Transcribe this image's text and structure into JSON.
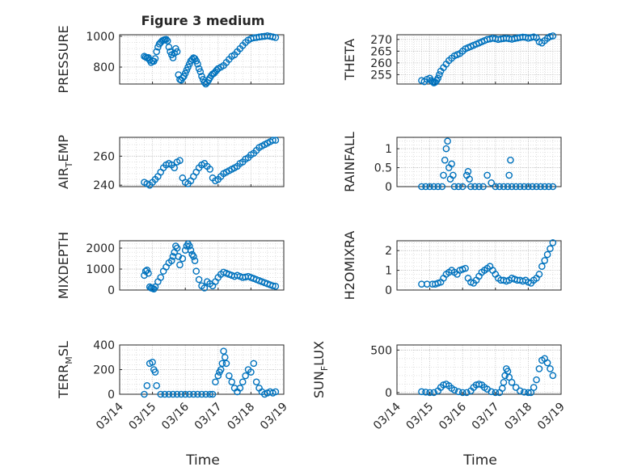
{
  "title": "Figure 3 medium",
  "xlabel": "Time",
  "x_ticks": [
    "03/14",
    "03/15",
    "03/16",
    "03/17",
    "03/18",
    "03/19"
  ],
  "marker_color": "#0072BD",
  "chart_data": [
    {
      "type": "scatter",
      "ylabel": "PRESSURE",
      "ylim": [
        690,
        1010
      ],
      "yticks": [
        800,
        1000
      ],
      "ytick_labels": [
        "800",
        "1000"
      ],
      "grid": true,
      "minor_grid": true,
      "x": [
        "03/14 18:00",
        "03/14 19:00",
        "03/14 20:00",
        "03/14 21:00",
        "03/14 22:00",
        "03/14 23:00",
        "03/15 00:00",
        "03/15 01:00",
        "03/15 02:00",
        "03/15 03:00",
        "03/15 04:00",
        "03/15 05:00",
        "03/15 06:00",
        "03/15 07:00",
        "03/15 08:00",
        "03/15 09:00",
        "03/15 10:00",
        "03/15 11:00",
        "03/15 12:00",
        "03/15 13:00",
        "03/15 14:00",
        "03/15 15:00",
        "03/15 16:00",
        "03/15 17:00",
        "03/15 18:00",
        "03/15 19:00",
        "03/15 20:00",
        "03/15 21:00",
        "03/15 22:00",
        "03/15 23:00",
        "03/16 00:00",
        "03/16 01:00",
        "03/16 02:00",
        "03/16 03:00",
        "03/16 04:00",
        "03/16 05:00",
        "03/16 06:00",
        "03/16 07:00",
        "03/16 08:00",
        "03/16 09:00",
        "03/16 10:00",
        "03/16 11:00",
        "03/16 12:00",
        "03/16 13:00",
        "03/16 14:00",
        "03/16 15:00",
        "03/16 16:00",
        "03/16 17:00",
        "03/16 18:00",
        "03/16 19:00",
        "03/16 20:00",
        "03/16 21:00",
        "03/16 22:00",
        "03/16 23:00",
        "03/17 00:00",
        "03/17 02:00",
        "03/17 04:00",
        "03/17 06:00",
        "03/17 08:00",
        "03/17 10:00",
        "03/17 12:00",
        "03/17 14:00",
        "03/17 16:00",
        "03/17 18:00",
        "03/17 20:00",
        "03/17 22:00",
        "03/18 00:00",
        "03/18 02:00",
        "03/18 04:00",
        "03/18 06:00",
        "03/18 08:00",
        "03/18 10:00",
        "03/18 12:00",
        "03/18 14:00",
        "03/18 16:00",
        "03/18 18:00"
      ],
      "y": [
        870,
        865,
        860,
        862,
        845,
        830,
        840,
        838,
        855,
        900,
        930,
        950,
        960,
        970,
        975,
        978,
        980,
        970,
        930,
        900,
        880,
        860,
        890,
        920,
        900,
        750,
        720,
        715,
        730,
        740,
        760,
        780,
        800,
        820,
        840,
        850,
        860,
        855,
        840,
        820,
        790,
        770,
        740,
        720,
        700,
        690,
        700,
        715,
        730,
        745,
        755,
        760,
        770,
        780,
        790,
        800,
        810,
        830,
        850,
        870,
        880,
        900,
        920,
        940,
        960,
        975,
        985,
        990,
        992,
        995,
        998,
        1000,
        1003,
        1000,
        996,
        992
      ]
    },
    {
      "type": "scatter",
      "ylabel": "THETA",
      "ylim": [
        251,
        272
      ],
      "yticks": [
        255,
        260,
        265,
        270
      ],
      "ytick_labels": [
        "255",
        "260",
        "265",
        "270"
      ],
      "grid": true,
      "minor_grid": true,
      "x": [
        "03/14 18:00",
        "03/14 20:00",
        "03/14 22:00",
        "03/15 00:00",
        "03/15 01:00",
        "03/15 02:00",
        "03/15 03:00",
        "03/15 04:00",
        "03/15 05:00",
        "03/15 06:00",
        "03/15 07:00",
        "03/15 08:00",
        "03/15 10:00",
        "03/15 12:00",
        "03/15 14:00",
        "03/15 16:00",
        "03/15 18:00",
        "03/15 20:00",
        "03/15 22:00",
        "03/16 00:00",
        "03/16 02:00",
        "03/16 04:00",
        "03/16 06:00",
        "03/16 08:00",
        "03/16 10:00",
        "03/16 12:00",
        "03/16 14:00",
        "03/16 16:00",
        "03/16 18:00",
        "03/16 20:00",
        "03/16 22:00",
        "03/17 00:00",
        "03/17 02:00",
        "03/17 04:00",
        "03/17 06:00",
        "03/17 08:00",
        "03/17 10:00",
        "03/17 12:00",
        "03/17 14:00",
        "03/17 16:00",
        "03/17 18:00",
        "03/17 20:00",
        "03/17 22:00",
        "03/18 00:00",
        "03/18 02:00",
        "03/18 04:00",
        "03/18 06:00",
        "03/18 08:00",
        "03/18 10:00",
        "03/18 12:00",
        "03/18 14:00",
        "03/18 16:00",
        "03/18 18:00"
      ],
      "y": [
        252.5,
        252.0,
        253.0,
        253.5,
        252.5,
        252.0,
        251.5,
        251.8,
        252.5,
        253.5,
        255,
        256.5,
        258,
        259.5,
        261,
        262,
        263,
        263.5,
        264,
        265,
        266,
        266.5,
        267,
        267.5,
        268,
        268.5,
        269,
        269.5,
        270,
        270.2,
        270.5,
        270.3,
        270,
        270.2,
        270.4,
        270.5,
        270.3,
        270.1,
        270.4,
        270.6,
        270.8,
        271.0,
        270.9,
        270.5,
        270.8,
        271.1,
        270.7,
        269.0,
        268.5,
        269.5,
        270.5,
        271.2,
        271.5
      ]
    },
    {
      "type": "scatter",
      "ylabel": "AIR_TEMP",
      "ylabel_main": "AIR",
      "ylabel_sub": "T",
      "ylabel_rest": "EMP",
      "ylim": [
        239,
        273
      ],
      "yticks": [
        240,
        260
      ],
      "ytick_labels": [
        "240",
        "260"
      ],
      "grid": true,
      "minor_grid": true,
      "x": [
        "03/14 18:00",
        "03/14 20:00",
        "03/14 22:00",
        "03/15 00:00",
        "03/15 02:00",
        "03/15 04:00",
        "03/15 06:00",
        "03/15 08:00",
        "03/15 10:00",
        "03/15 12:00",
        "03/15 14:00",
        "03/15 16:00",
        "03/15 18:00",
        "03/15 20:00",
        "03/15 22:00",
        "03/16 00:00",
        "03/16 02:00",
        "03/16 04:00",
        "03/16 06:00",
        "03/16 08:00",
        "03/16 10:00",
        "03/16 12:00",
        "03/16 14:00",
        "03/16 16:00",
        "03/16 18:00",
        "03/16 20:00",
        "03/16 22:00",
        "03/17 00:00",
        "03/17 02:00",
        "03/17 04:00",
        "03/17 06:00",
        "03/17 08:00",
        "03/17 10:00",
        "03/17 12:00",
        "03/17 14:00",
        "03/17 16:00",
        "03/17 18:00",
        "03/17 20:00",
        "03/17 22:00",
        "03/18 00:00",
        "03/18 02:00",
        "03/18 04:00",
        "03/18 06:00",
        "03/18 08:00",
        "03/18 10:00",
        "03/18 12:00",
        "03/18 14:00",
        "03/18 16:00",
        "03/18 18:00"
      ],
      "y": [
        242,
        241,
        240,
        242,
        244,
        246,
        249,
        252,
        254,
        255,
        254,
        252,
        256,
        257,
        245,
        242,
        241,
        243,
        246,
        249,
        252,
        254,
        255,
        253,
        251,
        245,
        243,
        244,
        246,
        248,
        249,
        250,
        251,
        252,
        253,
        255,
        256,
        258,
        259,
        261,
        262,
        264,
        266,
        267,
        268,
        269,
        270,
        271,
        271
      ]
    },
    {
      "type": "scatter",
      "ylabel": "RAINFALL",
      "ylim": [
        0,
        1.3
      ],
      "yticks": [
        0,
        0.5,
        1
      ],
      "ytick_labels": [
        "0",
        "0.5",
        "1"
      ],
      "grid": true,
      "minor_grid": true,
      "x": [
        "03/14 18:00",
        "03/14 21:00",
        "03/15 00:00",
        "03/15 03:00",
        "03/15 06:00",
        "03/15 09:00",
        "03/15 10:00",
        "03/15 11:00",
        "03/15 12:00",
        "03/15 13:00",
        "03/15 14:00",
        "03/15 15:00",
        "03/15 16:00",
        "03/15 17:00",
        "03/15 18:00",
        "03/15 21:00",
        "03/16 00:00",
        "03/16 03:00",
        "03/16 04:00",
        "03/16 05:00",
        "03/16 06:00",
        "03/16 09:00",
        "03/16 12:00",
        "03/16 15:00",
        "03/16 18:00",
        "03/16 21:00",
        "03/17 00:00",
        "03/17 03:00",
        "03/17 06:00",
        "03/17 09:00",
        "03/17 10:00",
        "03/17 11:00",
        "03/17 12:00",
        "03/17 15:00",
        "03/17 18:00",
        "03/17 21:00",
        "03/18 00:00",
        "03/18 03:00",
        "03/18 06:00",
        "03/18 09:00",
        "03/18 12:00",
        "03/18 15:00",
        "03/18 18:00"
      ],
      "y": [
        0,
        0,
        0,
        0,
        0,
        0,
        0.3,
        0.7,
        1.0,
        1.2,
        0.5,
        0.2,
        0.6,
        0.3,
        0,
        0,
        0,
        0.3,
        0.4,
        0.2,
        0,
        0,
        0,
        0,
        0.3,
        0.1,
        0,
        0,
        0,
        0,
        0.3,
        0.7,
        0,
        0,
        0,
        0,
        0,
        0,
        0,
        0,
        0,
        0,
        0
      ]
    },
    {
      "type": "scatter",
      "ylabel": "MIXDEPTH",
      "ylim": [
        0,
        2350
      ],
      "yticks": [
        0,
        1000,
        2000
      ],
      "ytick_labels": [
        "0",
        "1000",
        "2000"
      ],
      "grid": true,
      "minor_grid": true,
      "x": [
        "03/14 18:00",
        "03/14 19:00",
        "03/14 20:00",
        "03/14 21:00",
        "03/14 22:00",
        "03/14 23:00",
        "03/15 00:00",
        "03/15 01:00",
        "03/15 02:00",
        "03/15 04:00",
        "03/15 06:00",
        "03/15 08:00",
        "03/15 10:00",
        "03/15 12:00",
        "03/15 14:00",
        "03/15 15:00",
        "03/15 16:00",
        "03/15 17:00",
        "03/15 18:00",
        "03/15 19:00",
        "03/15 20:00",
        "03/15 22:00",
        "03/16 00:00",
        "03/16 01:00",
        "03/16 02:00",
        "03/16 03:00",
        "03/16 04:00",
        "03/16 05:00",
        "03/16 06:00",
        "03/16 07:00",
        "03/16 08:00",
        "03/16 10:00",
        "03/16 12:00",
        "03/16 14:00",
        "03/16 16:00",
        "03/16 18:00",
        "03/16 20:00",
        "03/16 22:00",
        "03/17 00:00",
        "03/17 02:00",
        "03/17 04:00",
        "03/17 06:00",
        "03/17 08:00",
        "03/17 10:00",
        "03/17 12:00",
        "03/17 14:00",
        "03/17 16:00",
        "03/17 18:00",
        "03/17 20:00",
        "03/17 22:00",
        "03/18 00:00",
        "03/18 02:00",
        "03/18 04:00",
        "03/18 06:00",
        "03/18 08:00",
        "03/18 10:00",
        "03/18 12:00",
        "03/18 14:00",
        "03/18 16:00",
        "03/18 18:00"
      ],
      "y": [
        700,
        900,
        950,
        800,
        150,
        100,
        80,
        50,
        150,
        400,
        600,
        900,
        1100,
        1300,
        1400,
        1600,
        1800,
        2100,
        2000,
        1600,
        1200,
        1500,
        1900,
        2100,
        2200,
        2100,
        1900,
        1700,
        1600,
        1400,
        900,
        500,
        200,
        100,
        400,
        300,
        200,
        400,
        600,
        750,
        850,
        800,
        750,
        700,
        650,
        700,
        650,
        600,
        620,
        650,
        600,
        550,
        500,
        450,
        400,
        350,
        300,
        250,
        200,
        180
      ]
    },
    {
      "type": "scatter",
      "ylabel": "H2OMIXRA",
      "ylim": [
        0,
        2.5
      ],
      "yticks": [
        0,
        1,
        2
      ],
      "ytick_labels": [
        "0",
        "1",
        "2"
      ],
      "grid": true,
      "minor_grid": true,
      "x": [
        "03/14 18:00",
        "03/14 22:00",
        "03/15 02:00",
        "03/15 04:00",
        "03/15 06:00",
        "03/15 08:00",
        "03/15 10:00",
        "03/15 12:00",
        "03/15 14:00",
        "03/15 16:00",
        "03/15 18:00",
        "03/15 20:00",
        "03/15 22:00",
        "03/16 00:00",
        "03/16 02:00",
        "03/16 04:00",
        "03/16 06:00",
        "03/16 08:00",
        "03/16 10:00",
        "03/16 12:00",
        "03/16 14:00",
        "03/16 16:00",
        "03/16 18:00",
        "03/16 20:00",
        "03/16 22:00",
        "03/17 00:00",
        "03/17 02:00",
        "03/17 04:00",
        "03/17 06:00",
        "03/17 08:00",
        "03/17 10:00",
        "03/17 12:00",
        "03/17 14:00",
        "03/17 16:00",
        "03/17 18:00",
        "03/17 20:00",
        "03/17 22:00",
        "03/18 00:00",
        "03/18 02:00",
        "03/18 04:00",
        "03/18 06:00",
        "03/18 08:00",
        "03/18 10:00",
        "03/18 12:00",
        "03/18 14:00",
        "03/18 16:00",
        "03/18 18:00"
      ],
      "y": [
        0.3,
        0.3,
        0.3,
        0.3,
        0.35,
        0.4,
        0.6,
        0.8,
        0.9,
        1.0,
        0.9,
        0.8,
        1.0,
        1.05,
        1.1,
        0.6,
        0.4,
        0.35,
        0.5,
        0.7,
        0.9,
        1.0,
        1.1,
        1.2,
        1.0,
        0.8,
        0.6,
        0.5,
        0.5,
        0.45,
        0.5,
        0.6,
        0.55,
        0.5,
        0.5,
        0.45,
        0.5,
        0.4,
        0.35,
        0.5,
        0.6,
        0.8,
        1.2,
        1.5,
        1.8,
        2.1,
        2.4
      ]
    },
    {
      "type": "scatter",
      "ylabel": "TERR_MSL",
      "ylabel_main": "TERR",
      "ylabel_sub": "M",
      "ylabel_rest": "SL",
      "ylim": [
        0,
        400
      ],
      "yticks": [
        0,
        200,
        400
      ],
      "ytick_labels": [
        "0",
        "200",
        "400"
      ],
      "grid": true,
      "minor_grid": true,
      "x": [
        "03/14 18:00",
        "03/14 20:00",
        "03/14 22:00",
        "03/15 00:00",
        "03/15 01:00",
        "03/15 02:00",
        "03/15 03:00",
        "03/15 06:00",
        "03/15 09:00",
        "03/15 12:00",
        "03/15 15:00",
        "03/15 18:00",
        "03/15 21:00",
        "03/16 00:00",
        "03/16 03:00",
        "03/16 06:00",
        "03/16 09:00",
        "03/16 12:00",
        "03/16 15:00",
        "03/16 18:00",
        "03/16 20:00",
        "03/16 22:00",
        "03/17 00:00",
        "03/17 01:00",
        "03/17 02:00",
        "03/17 03:00",
        "03/17 04:00",
        "03/17 05:00",
        "03/17 06:00",
        "03/17 08:00",
        "03/17 10:00",
        "03/17 12:00",
        "03/17 14:00",
        "03/17 16:00",
        "03/17 18:00",
        "03/17 20:00",
        "03/17 22:00",
        "03/18 00:00",
        "03/18 02:00",
        "03/18 04:00",
        "03/18 06:00",
        "03/18 08:00",
        "03/18 10:00",
        "03/18 12:00",
        "03/18 14:00",
        "03/18 16:00",
        "03/18 18:00"
      ],
      "y": [
        0,
        70,
        250,
        260,
        200,
        180,
        70,
        0,
        0,
        0,
        0,
        0,
        0,
        0,
        0,
        0,
        0,
        0,
        0,
        0,
        0,
        100,
        150,
        180,
        200,
        250,
        350,
        300,
        250,
        150,
        100,
        50,
        20,
        50,
        100,
        150,
        200,
        180,
        250,
        100,
        50,
        20,
        0,
        10,
        20,
        10,
        20
      ]
    },
    {
      "type": "scatter",
      "ylabel": "SUN_FLUX",
      "ylabel_main": "SUN",
      "ylabel_sub": "F",
      "ylabel_rest": "LUX",
      "ylim": [
        -20,
        560
      ],
      "yticks": [
        0,
        500
      ],
      "ytick_labels": [
        "0",
        "500"
      ],
      "grid": true,
      "minor_grid": true,
      "x": [
        "03/14 18:00",
        "03/14 21:00",
        "03/15 00:00",
        "03/15 03:00",
        "03/15 06:00",
        "03/15 08:00",
        "03/15 10:00",
        "03/15 12:00",
        "03/15 14:00",
        "03/15 16:00",
        "03/15 18:00",
        "03/15 21:00",
        "03/16 00:00",
        "03/16 03:00",
        "03/16 06:00",
        "03/16 08:00",
        "03/16 10:00",
        "03/16 12:00",
        "03/16 14:00",
        "03/16 16:00",
        "03/16 18:00",
        "03/16 21:00",
        "03/17 00:00",
        "03/17 03:00",
        "03/17 05:00",
        "03/17 06:00",
        "03/17 07:00",
        "03/17 08:00",
        "03/17 09:00",
        "03/17 10:00",
        "03/17 12:00",
        "03/17 15:00",
        "03/17 18:00",
        "03/17 21:00",
        "03/18 00:00",
        "03/18 02:00",
        "03/18 04:00",
        "03/18 06:00",
        "03/18 08:00",
        "03/18 10:00",
        "03/18 12:00",
        "03/18 14:00",
        "03/18 16:00",
        "03/18 18:00"
      ],
      "y": [
        10,
        5,
        0,
        0,
        20,
        60,
        90,
        100,
        80,
        50,
        30,
        10,
        0,
        0,
        20,
        60,
        90,
        100,
        90,
        60,
        40,
        10,
        0,
        0,
        50,
        120,
        200,
        280,
        250,
        180,
        120,
        60,
        20,
        5,
        0,
        0,
        60,
        150,
        280,
        380,
        400,
        350,
        280,
        200
      ]
    }
  ]
}
